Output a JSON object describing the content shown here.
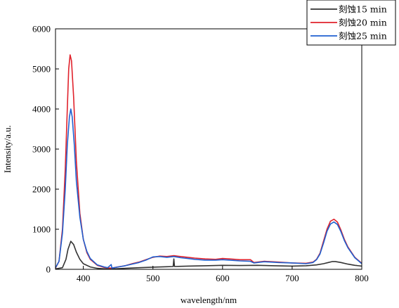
{
  "chart_data": {
    "type": "line",
    "xlabel": "wavelength/nm",
    "ylabel": "Intensity/a.u.",
    "xlim": [
      360,
      800
    ],
    "ylim": [
      0,
      6000
    ],
    "x_ticks": [
      400,
      500,
      600,
      700,
      800
    ],
    "y_ticks": [
      0,
      1000,
      2000,
      3000,
      4000,
      5000,
      6000
    ],
    "legend_position": "top-right",
    "series": [
      {
        "name": "刻蚀15 min",
        "color": "#333333",
        "points": [
          [
            360,
            10
          ],
          [
            370,
            40
          ],
          [
            375,
            250
          ],
          [
            378,
            500
          ],
          [
            382,
            700
          ],
          [
            386,
            620
          ],
          [
            390,
            430
          ],
          [
            395,
            250
          ],
          [
            400,
            140
          ],
          [
            410,
            60
          ],
          [
            420,
            25
          ],
          [
            430,
            12
          ],
          [
            440,
            8
          ],
          [
            450,
            15
          ],
          [
            460,
            25
          ],
          [
            480,
            40
          ],
          [
            500,
            55
          ],
          [
            520,
            65
          ],
          [
            529,
            70
          ],
          [
            530,
            260
          ],
          [
            531,
            70
          ],
          [
            550,
            80
          ],
          [
            575,
            90
          ],
          [
            600,
            100
          ],
          [
            625,
            95
          ],
          [
            650,
            100
          ],
          [
            675,
            90
          ],
          [
            700,
            80
          ],
          [
            720,
            90
          ],
          [
            735,
            110
          ],
          [
            745,
            140
          ],
          [
            752,
            170
          ],
          [
            758,
            195
          ],
          [
            762,
            195
          ],
          [
            770,
            170
          ],
          [
            780,
            130
          ],
          [
            790,
            100
          ],
          [
            800,
            80
          ]
        ]
      },
      {
        "name": "刻蚀20 min",
        "color": "#e0222c",
        "points": [
          [
            360,
            30
          ],
          [
            365,
            200
          ],
          [
            370,
            1000
          ],
          [
            374,
            2500
          ],
          [
            377,
            4000
          ],
          [
            379,
            5000
          ],
          [
            381,
            5350
          ],
          [
            383,
            5200
          ],
          [
            386,
            4300
          ],
          [
            390,
            2700
          ],
          [
            395,
            1400
          ],
          [
            400,
            750
          ],
          [
            405,
            420
          ],
          [
            410,
            250
          ],
          [
            420,
            100
          ],
          [
            430,
            45
          ],
          [
            440,
            30
          ],
          [
            450,
            60
          ],
          [
            460,
            90
          ],
          [
            470,
            140
          ],
          [
            480,
            180
          ],
          [
            490,
            240
          ],
          [
            500,
            300
          ],
          [
            510,
            330
          ],
          [
            520,
            320
          ],
          [
            530,
            340
          ],
          [
            540,
            320
          ],
          [
            550,
            300
          ],
          [
            560,
            280
          ],
          [
            575,
            260
          ],
          [
            590,
            250
          ],
          [
            600,
            270
          ],
          [
            610,
            260
          ],
          [
            625,
            240
          ],
          [
            640,
            240
          ],
          [
            645,
            170
          ],
          [
            660,
            200
          ],
          [
            680,
            180
          ],
          [
            700,
            160
          ],
          [
            720,
            150
          ],
          [
            730,
            180
          ],
          [
            735,
            250
          ],
          [
            740,
            400
          ],
          [
            745,
            700
          ],
          [
            750,
            1000
          ],
          [
            755,
            1200
          ],
          [
            760,
            1250
          ],
          [
            765,
            1180
          ],
          [
            770,
            980
          ],
          [
            775,
            750
          ],
          [
            780,
            560
          ],
          [
            790,
            300
          ],
          [
            800,
            150
          ]
        ]
      },
      {
        "name": "刻蚀25 min",
        "color": "#2060d0",
        "points": [
          [
            360,
            40
          ],
          [
            365,
            200
          ],
          [
            370,
            900
          ],
          [
            374,
            2000
          ],
          [
            377,
            3100
          ],
          [
            380,
            3800
          ],
          [
            382,
            4000
          ],
          [
            384,
            3800
          ],
          [
            387,
            3100
          ],
          [
            390,
            2200
          ],
          [
            395,
            1300
          ],
          [
            400,
            750
          ],
          [
            405,
            450
          ],
          [
            410,
            270
          ],
          [
            420,
            110
          ],
          [
            430,
            60
          ],
          [
            435,
            40
          ],
          [
            440,
            120
          ],
          [
            441,
            30
          ],
          [
            450,
            60
          ],
          [
            460,
            90
          ],
          [
            470,
            130
          ],
          [
            480,
            170
          ],
          [
            490,
            230
          ],
          [
            500,
            310
          ],
          [
            510,
            320
          ],
          [
            520,
            300
          ],
          [
            530,
            320
          ],
          [
            540,
            290
          ],
          [
            550,
            270
          ],
          [
            560,
            250
          ],
          [
            575,
            230
          ],
          [
            590,
            230
          ],
          [
            600,
            240
          ],
          [
            610,
            230
          ],
          [
            625,
            210
          ],
          [
            640,
            200
          ],
          [
            645,
            160
          ],
          [
            660,
            190
          ],
          [
            680,
            170
          ],
          [
            700,
            160
          ],
          [
            720,
            140
          ],
          [
            730,
            170
          ],
          [
            735,
            240
          ],
          [
            740,
            380
          ],
          [
            745,
            650
          ],
          [
            750,
            950
          ],
          [
            755,
            1130
          ],
          [
            760,
            1180
          ],
          [
            765,
            1120
          ],
          [
            770,
            940
          ],
          [
            775,
            720
          ],
          [
            780,
            540
          ],
          [
            790,
            290
          ],
          [
            800,
            140
          ]
        ]
      }
    ]
  }
}
